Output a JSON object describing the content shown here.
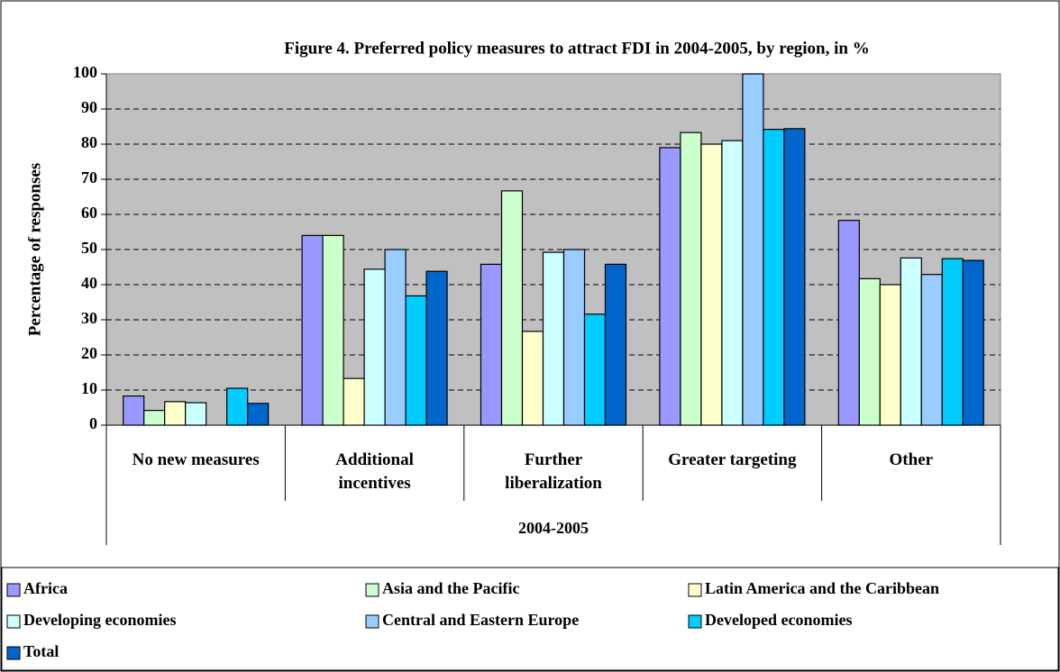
{
  "chart_data": {
    "type": "bar",
    "title": "Figure 4. Preferred policy measures to attract FDI in 2004-2005, by region, in %",
    "ylabel": "Percentage of responses",
    "x_group": "2004-2005",
    "categories": [
      "No new measures",
      "Additional incentives",
      "Further liberalization",
      "Greater targeting",
      "Other"
    ],
    "series": [
      {
        "name": "Africa",
        "color": "#9999ff",
        "values": [
          8.3,
          54,
          45.8,
          79,
          58.3
        ]
      },
      {
        "name": "Asia and the Pacific",
        "color": "#ccffcc",
        "values": [
          4.2,
          54,
          66.7,
          83.3,
          41.7
        ]
      },
      {
        "name": "Latin America and the Caribbean",
        "color": "#ffffcc",
        "values": [
          6.7,
          13.3,
          26.7,
          80,
          40
        ]
      },
      {
        "name": "Developing economies",
        "color": "#ccffff",
        "values": [
          6.4,
          44.4,
          49.2,
          81,
          47.6
        ]
      },
      {
        "name": "Central and Eastern Europe",
        "color": "#99ccff",
        "values": [
          0,
          50,
          50,
          100,
          42.9
        ]
      },
      {
        "name": "Developed economies",
        "color": "#00ccff",
        "values": [
          10.5,
          36.8,
          31.6,
          84.2,
          47.4
        ]
      },
      {
        "name": "Total",
        "color": "#0066cc",
        "values": [
          6.2,
          43.8,
          45.8,
          84.4,
          46.9
        ]
      }
    ],
    "ylim": [
      0,
      100
    ],
    "yticks": [
      0,
      10,
      20,
      30,
      40,
      50,
      60,
      70,
      80,
      90,
      100
    ],
    "grid": true,
    "plot_background": "#c0c0c0",
    "legend": "bottom"
  }
}
